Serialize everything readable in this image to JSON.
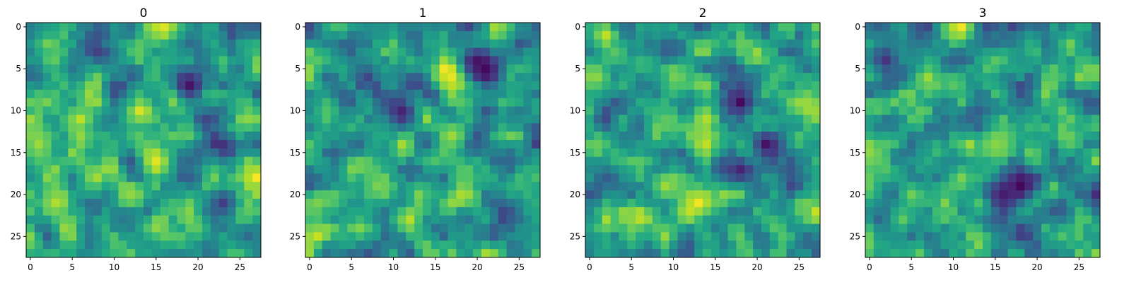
{
  "figure": {
    "panels": [
      "0",
      "1",
      "2",
      "3"
    ]
  },
  "chart_data": [
    {
      "type": "heatmap",
      "title": "0",
      "colormap": "viridis",
      "grid": false,
      "x_ticks": [
        "0",
        "5",
        "10",
        "15",
        "20",
        "25"
      ],
      "y_ticks": [
        "0",
        "5",
        "10",
        "15",
        "20",
        "25"
      ],
      "xlim": [
        -0.5,
        27.5
      ],
      "ylim": [
        27.5,
        -0.5
      ],
      "grid_size": [
        28,
        28
      ],
      "value_range": [
        0,
        1
      ],
      "seed": 11,
      "hotspots": [
        {
          "row": 11,
          "col": 6,
          "v": 0.9
        },
        {
          "row": 16,
          "col": 15,
          "v": 0.95
        },
        {
          "row": 21,
          "col": 3,
          "v": 0.88
        },
        {
          "row": 0,
          "col": 16,
          "v": 0.95
        },
        {
          "row": 14,
          "col": 1,
          "v": 0.85
        }
      ],
      "coldspots": [
        {
          "row": 7,
          "col": 19,
          "v": 0.05
        },
        {
          "row": 21,
          "col": 23,
          "v": 0.18
        }
      ]
    },
    {
      "type": "heatmap",
      "title": "1",
      "colormap": "viridis",
      "grid": false,
      "x_ticks": [
        "0",
        "5",
        "10",
        "15",
        "20",
        "25"
      ],
      "y_ticks": [
        "0",
        "5",
        "10",
        "15",
        "20",
        "25"
      ],
      "xlim": [
        -0.5,
        27.5
      ],
      "ylim": [
        27.5,
        -0.5
      ],
      "grid_size": [
        28,
        28
      ],
      "value_range": [
        0,
        1
      ],
      "seed": 23,
      "hotspots": [
        {
          "row": 6,
          "col": 17,
          "v": 0.98
        },
        {
          "row": 13,
          "col": 17,
          "v": 0.85
        },
        {
          "row": 21,
          "col": 1,
          "v": 0.8
        },
        {
          "row": 19,
          "col": 8,
          "v": 0.8
        }
      ],
      "coldspots": [
        {
          "row": 5,
          "col": 21,
          "v": 0.0
        },
        {
          "row": 4,
          "col": 20,
          "v": 0.05
        },
        {
          "row": 10,
          "col": 11,
          "v": 0.1
        }
      ]
    },
    {
      "type": "heatmap",
      "title": "2",
      "colormap": "viridis",
      "grid": false,
      "x_ticks": [
        "0",
        "5",
        "10",
        "15",
        "20",
        "25"
      ],
      "y_ticks": [
        "0",
        "5",
        "10",
        "15",
        "20",
        "25"
      ],
      "xlim": [
        -0.5,
        27.5
      ],
      "ylim": [
        27.5,
        -0.5
      ],
      "grid_size": [
        28,
        28
      ],
      "value_range": [
        0,
        1
      ],
      "seed": 37,
      "hotspots": [
        {
          "row": 21,
          "col": 13,
          "v": 0.98
        },
        {
          "row": 11,
          "col": 14,
          "v": 0.88
        },
        {
          "row": 19,
          "col": 9,
          "v": 0.85
        },
        {
          "row": 1,
          "col": 2,
          "v": 0.9
        },
        {
          "row": 6,
          "col": 1,
          "v": 0.82
        }
      ],
      "coldspots": [
        {
          "row": 9,
          "col": 18,
          "v": 0.02
        },
        {
          "row": 14,
          "col": 21,
          "v": 0.05
        },
        {
          "row": 17,
          "col": 18,
          "v": 0.1
        }
      ]
    },
    {
      "type": "heatmap",
      "title": "3",
      "colormap": "viridis",
      "grid": false,
      "x_ticks": [
        "0",
        "5",
        "10",
        "15",
        "20",
        "25"
      ],
      "y_ticks": [
        "0",
        "5",
        "10",
        "15",
        "20",
        "25"
      ],
      "xlim": [
        -0.5,
        27.5
      ],
      "ylim": [
        27.5,
        -0.5
      ],
      "grid_size": [
        28,
        28
      ],
      "value_range": [
        0,
        1
      ],
      "seed": 53,
      "hotspots": [
        {
          "row": 0,
          "col": 11,
          "v": 0.98
        },
        {
          "row": 14,
          "col": 15,
          "v": 0.82
        },
        {
          "row": 18,
          "col": 11,
          "v": 0.8
        },
        {
          "row": 20,
          "col": 5,
          "v": 0.78
        }
      ],
      "coldspots": [
        {
          "row": 19,
          "col": 18,
          "v": 0.0
        },
        {
          "row": 20,
          "col": 16,
          "v": 0.08
        },
        {
          "row": 4,
          "col": 2,
          "v": 0.15
        }
      ]
    }
  ]
}
